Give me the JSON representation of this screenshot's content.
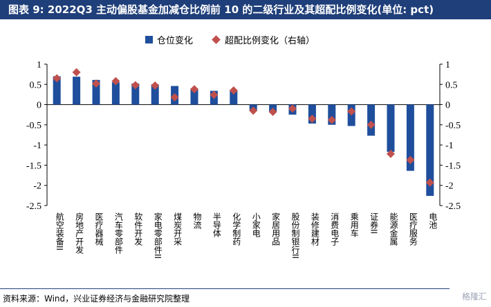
{
  "title": "图表 9: 2022Q3 主动偏股基金加减仓比例前 10 的二级行业及其超配比例变化(单位: pct)",
  "legend": {
    "bar_label": "仓位变化",
    "marker_label": "超配比例变化（右轴）"
  },
  "source": "资料来源：Wind，兴业证券经济与金融研究院整理",
  "watermark": "格隆汇",
  "colors": {
    "bar": "#1f4e9c",
    "marker": "#c0504d",
    "title_bg": "#1f3f7a"
  },
  "chart_data": {
    "type": "bar",
    "categories": [
      "航空装备II",
      "房地产开发",
      "医疗器械",
      "汽车零部件",
      "软件开发",
      "家电零部件II",
      "煤炭开采",
      "物流",
      "半导体",
      "化学制药",
      "小家电",
      "家居用品",
      "股份制银行II",
      "装修建材",
      "消费电子",
      "乘用车",
      "证券II",
      "能源金属",
      "医疗服务",
      "电池"
    ],
    "series": [
      {
        "name": "仓位变化",
        "axis": "left",
        "values": [
          0.7,
          0.69,
          0.61,
          0.55,
          0.52,
          0.5,
          0.46,
          0.4,
          0.34,
          0.36,
          -0.15,
          -0.18,
          -0.25,
          -0.47,
          -0.5,
          -0.53,
          -0.77,
          -1.17,
          -1.64,
          -2.26
        ]
      },
      {
        "name": "超配比例变化（右轴）",
        "axis": "right",
        "values": [
          0.65,
          0.8,
          0.52,
          0.58,
          0.48,
          0.47,
          0.18,
          0.38,
          0.24,
          0.35,
          -0.15,
          -0.18,
          -0.1,
          -0.35,
          -0.38,
          -0.17,
          -0.5,
          -1.22,
          -1.37,
          -1.93
        ]
      }
    ],
    "ylim": [
      -2.5,
      1
    ],
    "y2lim": [
      -2.5,
      1
    ],
    "yticks": [
      "1",
      "0.5",
      "0",
      "-0.5",
      "-1",
      "-1.5",
      "-2",
      "-2.5"
    ],
    "y2ticks": [
      "1",
      "0.5",
      "0",
      "-0.5",
      "-1",
      "-1.5",
      "-2",
      "-2.5"
    ],
    "ytick_values": [
      1,
      0.5,
      0,
      -0.5,
      -1,
      -1.5,
      -2,
      -2.5
    ],
    "legend_position": "top"
  }
}
